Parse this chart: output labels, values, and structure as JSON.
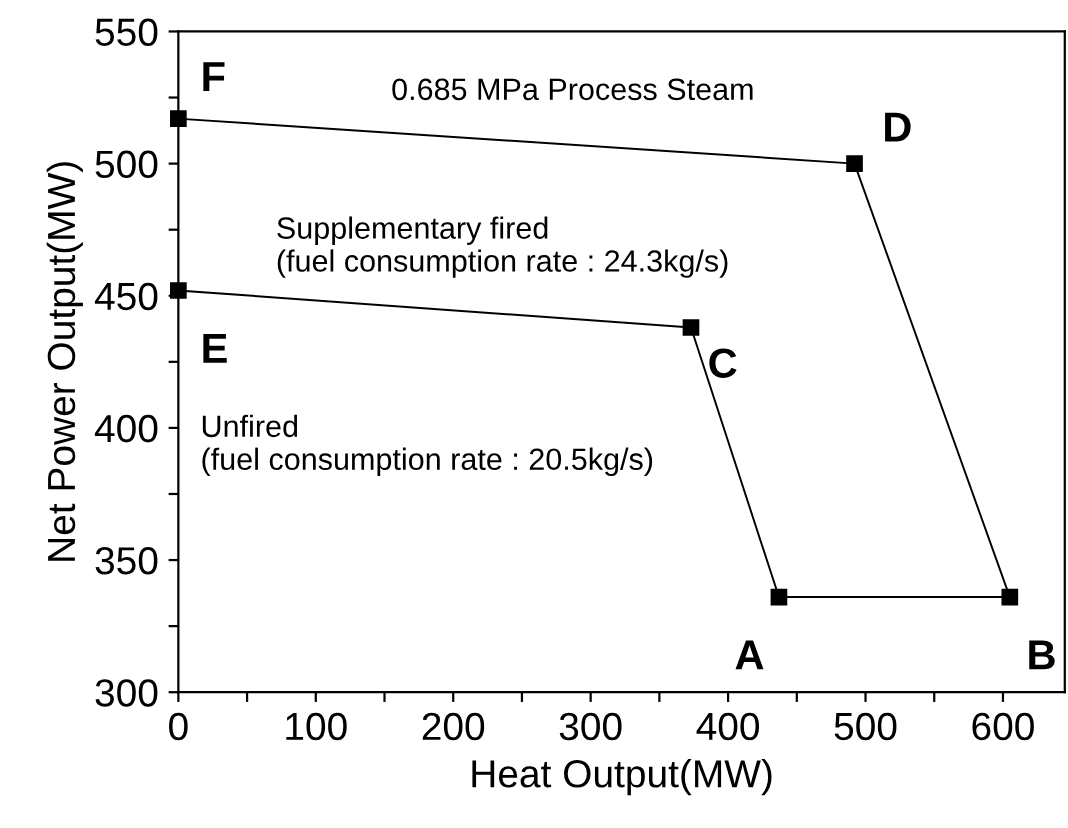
{
  "chart_data": {
    "type": "line",
    "xlabel": "Heat Output(MW)",
    "ylabel": "Net Power Output(MW)",
    "series": [
      {
        "color": "#000000",
        "x": [
          0,
          373,
          437,
          605,
          492,
          0
        ],
        "values": [
          452,
          438,
          336,
          336,
          500,
          517
        ]
      }
    ],
    "xlim": [
      0,
      645
    ],
    "ylim": [
      300,
      550
    ],
    "xticks": [
      0,
      {
        "value": 50,
        "label": null
      },
      100,
      {
        "value": 150,
        "label": null
      },
      200,
      {
        "value": 250,
        "label": null
      },
      300,
      {
        "value": 350,
        "label": null
      },
      400,
      {
        "value": 450,
        "label": null
      },
      500,
      {
        "value": 550,
        "label": null
      },
      600
    ],
    "yticks": [
      300,
      {
        "value": 325,
        "label": null
      },
      350,
      {
        "value": 375,
        "label": null
      },
      400,
      {
        "value": 425,
        "label": null
      },
      450,
      {
        "value": 475,
        "label": null
      },
      500,
      {
        "value": 525,
        "label": null
      },
      550
    ],
    "marker": "square",
    "line_style": "solid",
    "grid": false,
    "legend": false,
    "annotations": [
      {
        "text": "A",
        "x": 437,
        "y": 336
      },
      {
        "text": "B",
        "x": 605,
        "y": 336
      },
      {
        "text": "C",
        "x": 373,
        "y": 438
      },
      {
        "text": "D",
        "x": 492,
        "y": 500
      },
      {
        "text": "E",
        "x": 0,
        "y": 452
      },
      {
        "text": "F",
        "x": 0,
        "y": 517
      },
      "0.685 MPa Process Steam",
      "Supplementary fired\n(fuel consumption rate : 24.3kg/s)",
      "Unfired\n(fuel consumption rate : 20.5kg/s)"
    ]
  }
}
